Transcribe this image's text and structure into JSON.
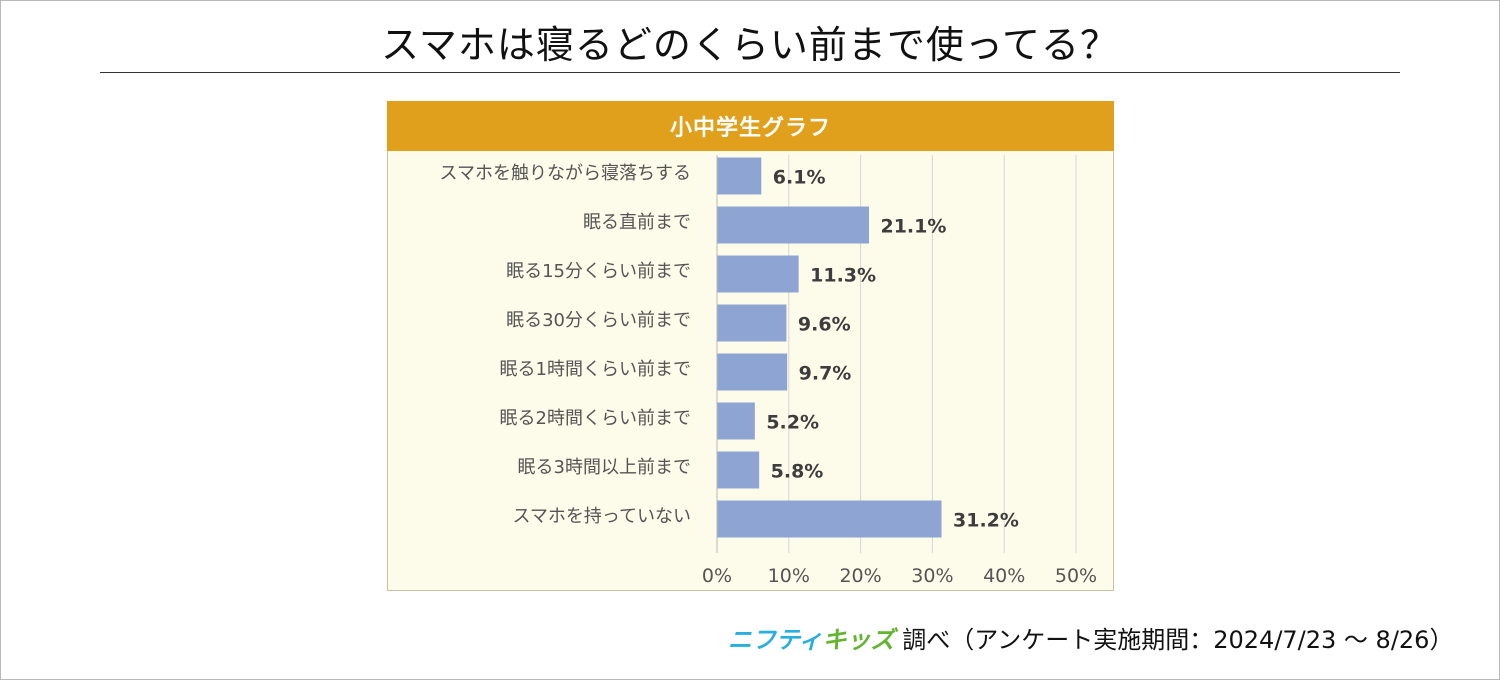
{
  "page": {
    "title": "スマホは寝るどのくらい前まで使ってる？"
  },
  "panel": {
    "header": "小中学生グラフ"
  },
  "footer": {
    "brand_nifty": "ニフティ",
    "brand_kids": "キッズ",
    "text": "調べ（アンケート実施期間：2024/7/23 ～ 8/26）"
  },
  "colors": {
    "header_bg": "#e1a01c",
    "panel_bg": "#fdfbe9",
    "bar": "#8ea4d2",
    "brand_nifty": "#29aee0",
    "brand_kids": "#62b431"
  },
  "chart_data": {
    "type": "bar",
    "orientation": "horizontal",
    "title": "小中学生グラフ",
    "categories": [
      "スマホを触りながら寝落ちする",
      "眠る直前まで",
      "眠る15分くらい前まで",
      "眠る30分くらい前まで",
      "眠る1時間くらい前まで",
      "眠る2時間くらい前まで",
      "眠る3時間以上前まで",
      "スマホを持っていない"
    ],
    "values": [
      6.1,
      21.1,
      11.3,
      9.6,
      9.7,
      5.2,
      5.8,
      31.2
    ],
    "value_labels": [
      "6.1%",
      "21.1%",
      "11.3%",
      "9.6%",
      "9.7%",
      "5.2%",
      "5.8%",
      "31.2%"
    ],
    "xlim": [
      0,
      50
    ],
    "xticks": [
      0,
      10,
      20,
      30,
      40,
      50
    ],
    "xtick_labels": [
      "0%",
      "10%",
      "20%",
      "30%",
      "40%",
      "50%"
    ],
    "grid": "vertical",
    "legend": "none"
  }
}
